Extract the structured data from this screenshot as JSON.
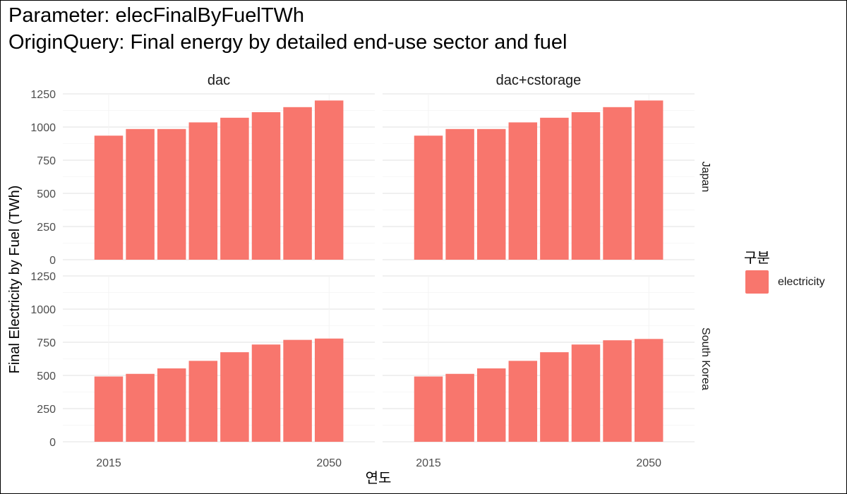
{
  "header": {
    "title_line1": "Parameter: elecFinalByFuelTWh",
    "title_line2": "OriginQuery: Final energy by detailed end-use sector and fuel"
  },
  "colors": {
    "electricity": "#F8766D",
    "grid": "#ebebeb",
    "axis_text": "#4d4d4d"
  },
  "chart_data": {
    "type": "bar",
    "xlabel": "연도",
    "ylabel": "Final Electricity by Fuel (TWh)",
    "x_tick_labels": [
      "2015",
      "2050"
    ],
    "x_tick_positions": [
      2015,
      2050
    ],
    "years": [
      2015,
      2020,
      2025,
      2030,
      2035,
      2040,
      2045,
      2050
    ],
    "ylim": [
      0,
      1300
    ],
    "y_ticks": [
      0,
      250,
      500,
      750,
      1000,
      1250
    ],
    "y_tick_labels": [
      "0",
      "250",
      "500",
      "750",
      "1000",
      "1250"
    ],
    "facet_columns": [
      "dac",
      "dac+cstorage"
    ],
    "facet_rows": [
      "Japan",
      "South Korea"
    ],
    "legend": {
      "title": "구분",
      "entries": [
        "electricity"
      ],
      "position": "right"
    },
    "panels": [
      {
        "column": "dac",
        "row": "Japan",
        "series": [
          {
            "name": "electricity",
            "values": [
              935,
              985,
              985,
              1035,
              1070,
              1112,
              1150,
              1200
            ]
          }
        ]
      },
      {
        "column": "dac+cstorage",
        "row": "Japan",
        "series": [
          {
            "name": "electricity",
            "values": [
              935,
              985,
              985,
              1035,
              1070,
              1112,
              1150,
              1200
            ]
          }
        ]
      },
      {
        "column": "dac",
        "row": "South Korea",
        "series": [
          {
            "name": "electricity",
            "values": [
              492,
              512,
              553,
              610,
              675,
              733,
              768,
              778
            ]
          }
        ]
      },
      {
        "column": "dac+cstorage",
        "row": "South Korea",
        "series": [
          {
            "name": "electricity",
            "values": [
              492,
              512,
              553,
              610,
              675,
              733,
              765,
              775
            ]
          }
        ]
      }
    ]
  }
}
